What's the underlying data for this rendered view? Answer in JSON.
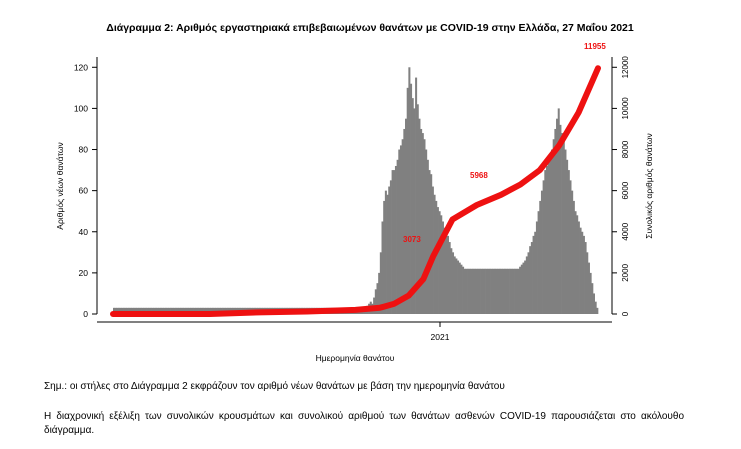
{
  "chart_data": {
    "type": "bar",
    "title": "Διάγραμμα 2: Αριθμός εργαστηριακά επιβεβαιωμένων θανάτων με COVID-19 στην Ελλάδα, 27 Μαΐου 2021",
    "xlabel": "Ημερομηνία θανάτου",
    "ylabel": "Αριθμός νέων θανάτων",
    "y2label": "Συνολικός αριθμός θανάτων",
    "x_tick_labels": [
      "2021"
    ],
    "y_ticks": [
      0,
      20,
      40,
      60,
      80,
      100,
      120
    ],
    "y2_ticks": [
      0,
      2000,
      4000,
      6000,
      8000,
      10000,
      12000
    ],
    "ylim": [
      0,
      125
    ],
    "y2lim": [
      0,
      12500
    ],
    "grid": false,
    "legend": "none",
    "series": [
      {
        "type": "bar",
        "color": "#808080",
        "values": [
          3,
          3,
          3,
          3,
          3,
          3,
          3,
          3,
          3,
          3,
          3,
          3,
          3,
          3,
          3,
          3,
          3,
          3,
          3,
          3,
          3,
          3,
          3,
          3,
          3,
          3,
          3,
          3,
          3,
          3,
          3,
          3,
          3,
          3,
          3,
          3,
          3,
          3,
          3,
          3,
          3,
          3,
          3,
          3,
          3,
          3,
          3,
          3,
          3,
          3,
          3,
          3,
          3,
          3,
          3,
          3,
          3,
          3,
          3,
          3,
          3,
          3,
          3,
          3,
          3,
          3,
          3,
          3,
          3,
          3,
          3,
          3,
          3,
          3,
          3,
          3,
          3,
          3,
          3,
          3,
          3,
          3,
          3,
          3,
          3,
          3,
          3,
          3,
          3,
          3,
          3,
          3,
          3,
          3,
          3,
          3,
          3,
          3,
          3,
          3,
          3,
          3,
          3,
          3,
          3,
          3,
          3,
          3,
          3,
          3,
          3,
          3,
          3,
          3,
          3,
          3,
          3,
          3,
          3,
          3,
          3,
          3,
          3,
          3,
          3,
          3,
          3,
          3,
          3,
          3,
          3,
          3,
          3,
          3,
          3,
          3,
          3,
          3,
          3,
          3,
          3,
          3,
          3,
          3,
          3,
          3,
          3,
          3,
          3,
          3,
          3,
          4,
          5,
          6,
          5,
          8,
          12,
          15,
          20,
          30,
          45,
          55,
          60,
          58,
          62,
          65,
          70,
          70,
          72,
          75,
          80,
          82,
          85,
          90,
          95,
          110,
          120,
          112,
          105,
          100,
          115,
          102,
          95,
          90,
          88,
          85,
          80,
          75,
          70,
          68,
          62,
          58,
          55,
          52,
          50,
          48,
          45,
          42,
          40,
          38,
          35,
          32,
          30,
          28,
          27,
          26,
          25,
          24,
          23,
          22,
          22,
          22,
          22,
          22,
          22,
          22,
          22,
          22,
          22,
          22,
          22,
          22,
          22,
          22,
          22,
          22,
          22,
          22,
          22,
          22,
          22,
          22,
          22,
          22,
          22,
          22,
          22,
          22,
          22,
          22,
          22,
          22,
          23,
          24,
          25,
          26,
          28,
          30,
          33,
          35,
          38,
          40,
          45,
          50,
          55,
          60,
          65,
          70,
          72,
          75,
          78,
          80,
          85,
          90,
          95,
          100,
          92,
          88,
          85,
          80,
          75,
          70,
          65,
          60,
          55,
          50,
          48,
          45,
          42,
          40,
          38,
          35,
          30,
          25,
          20,
          15,
          10,
          6,
          3
        ]
      },
      {
        "type": "line",
        "color": "#ee1111",
        "axis": "right",
        "x_fraction": [
          0,
          0.1,
          0.2,
          0.3,
          0.4,
          0.5,
          0.55,
          0.58,
          0.61,
          0.64,
          0.66,
          0.68,
          0.7,
          0.75,
          0.8,
          0.84,
          0.88,
          0.92,
          0.96,
          1.0
        ],
        "values": [
          0,
          0,
          0,
          80,
          120,
          200,
          300,
          500,
          900,
          1700,
          2800,
          3700,
          4600,
          5300,
          5800,
          6300,
          7000,
          8200,
          9800,
          11955
        ]
      }
    ],
    "annotations": [
      "11955",
      "5968",
      "3073"
    ]
  },
  "notes": {
    "note1": "Σημ.: οι στήλες στο Διάγραμμα 2 εκφράζουν τον αριθμό νέων θανάτων με βάση την ημερομηνία θανάτου",
    "note2": "Η διαχρονική εξέλιξη των συνολικών κρουσμάτων και συνολικού αριθμού των θανάτων ασθενών COVID-19 παρουσιάζεται στο ακόλουθο διάγραμμα."
  }
}
